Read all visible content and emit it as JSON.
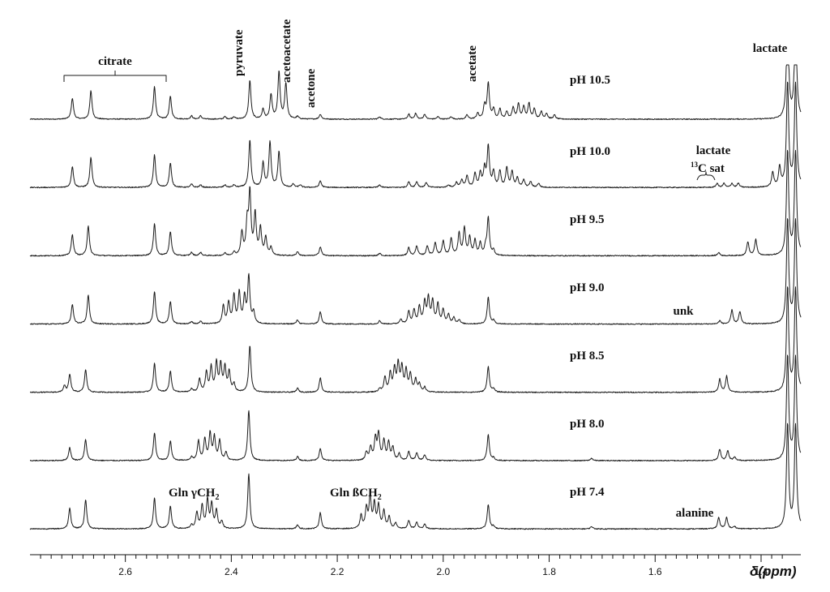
{
  "chart_data": {
    "type": "line",
    "title": "",
    "xlabel": "δ(ppm)",
    "ylabel": "",
    "xlim": [
      2.78,
      1.325
    ],
    "x_reversed": true,
    "grid": false,
    "ticks": [
      2.6,
      2.4,
      2.2,
      2.0,
      1.8,
      1.6,
      1.4
    ],
    "tick_labels": [
      "2.6",
      "2.4",
      "2.2",
      "2.0",
      "1.8",
      "1.6",
      "1.4"
    ],
    "series": [
      {
        "name": "pH 10.5",
        "baseline_rank": 0,
        "peaks": [
          [
            2.7,
            26
          ],
          [
            2.665,
            35
          ],
          [
            2.545,
            40
          ],
          [
            2.515,
            28
          ],
          [
            2.475,
            4
          ],
          [
            2.458,
            4
          ],
          [
            2.412,
            3
          ],
          [
            2.395,
            3
          ],
          [
            2.365,
            48
          ],
          [
            2.34,
            12
          ],
          [
            2.325,
            30
          ],
          [
            2.31,
            58
          ],
          [
            2.297,
            44
          ],
          [
            2.275,
            3
          ],
          [
            2.232,
            6
          ],
          [
            2.12,
            3
          ],
          [
            2.065,
            6
          ],
          [
            2.052,
            7
          ],
          [
            2.035,
            6
          ],
          [
            2.01,
            3
          ],
          [
            1.985,
            3
          ],
          [
            1.955,
            5
          ],
          [
            1.935,
            7
          ],
          [
            1.922,
            16
          ],
          [
            1.915,
            44
          ],
          [
            1.905,
            12
          ],
          [
            1.893,
            12
          ],
          [
            1.88,
            9
          ],
          [
            1.868,
            14
          ],
          [
            1.858,
            18
          ],
          [
            1.848,
            15
          ],
          [
            1.838,
            19
          ],
          [
            1.828,
            12
          ],
          [
            1.815,
            9
          ],
          [
            1.805,
            7
          ],
          [
            1.79,
            5
          ],
          [
            1.35,
            130
          ],
          [
            1.335,
            130
          ],
          [
            1.315,
            12
          ],
          [
            1.3,
            12
          ]
        ]
      },
      {
        "name": "pH 10.0",
        "baseline_rank": 1,
        "peaks": [
          [
            2.7,
            26
          ],
          [
            2.665,
            37
          ],
          [
            2.545,
            40
          ],
          [
            2.515,
            30
          ],
          [
            2.475,
            4
          ],
          [
            2.458,
            3
          ],
          [
            2.412,
            3
          ],
          [
            2.395,
            3
          ],
          [
            2.365,
            58
          ],
          [
            2.34,
            30
          ],
          [
            2.327,
            56
          ],
          [
            2.31,
            44
          ],
          [
            2.283,
            4
          ],
          [
            2.27,
            3
          ],
          [
            2.232,
            8
          ],
          [
            2.12,
            3
          ],
          [
            2.065,
            7
          ],
          [
            2.05,
            7
          ],
          [
            2.032,
            6
          ],
          [
            1.99,
            3
          ],
          [
            1.975,
            6
          ],
          [
            1.965,
            9
          ],
          [
            1.955,
            14
          ],
          [
            1.94,
            17
          ],
          [
            1.93,
            17
          ],
          [
            1.922,
            22
          ],
          [
            1.915,
            50
          ],
          [
            1.905,
            19
          ],
          [
            1.893,
            20
          ],
          [
            1.88,
            24
          ],
          [
            1.87,
            19
          ],
          [
            1.86,
            12
          ],
          [
            1.848,
            9
          ],
          [
            1.835,
            7
          ],
          [
            1.82,
            5
          ],
          [
            1.483,
            5
          ],
          [
            1.47,
            5
          ],
          [
            1.455,
            5
          ],
          [
            1.443,
            5
          ],
          [
            1.378,
            18
          ],
          [
            1.365,
            24
          ],
          [
            1.35,
            130
          ],
          [
            1.335,
            130
          ],
          [
            1.318,
            16
          ]
        ]
      },
      {
        "name": "pH 9.5",
        "baseline_rank": 2,
        "peaks": [
          [
            2.7,
            26
          ],
          [
            2.67,
            37
          ],
          [
            2.545,
            40
          ],
          [
            2.515,
            30
          ],
          [
            2.475,
            4
          ],
          [
            2.458,
            4
          ],
          [
            2.412,
            3
          ],
          [
            2.395,
            4
          ],
          [
            2.38,
            28
          ],
          [
            2.37,
            38
          ],
          [
            2.365,
            75
          ],
          [
            2.355,
            50
          ],
          [
            2.345,
            33
          ],
          [
            2.335,
            22
          ],
          [
            2.325,
            10
          ],
          [
            2.275,
            5
          ],
          [
            2.232,
            11
          ],
          [
            2.12,
            3
          ],
          [
            2.065,
            10
          ],
          [
            2.05,
            12
          ],
          [
            2.03,
            12
          ],
          [
            2.015,
            16
          ],
          [
            2.0,
            18
          ],
          [
            1.985,
            21
          ],
          [
            1.97,
            27
          ],
          [
            1.96,
            33
          ],
          [
            1.95,
            22
          ],
          [
            1.94,
            18
          ],
          [
            1.93,
            15
          ],
          [
            1.92,
            9
          ],
          [
            1.915,
            46
          ],
          [
            1.905,
            6
          ],
          [
            1.48,
            4
          ],
          [
            1.425,
            17
          ],
          [
            1.41,
            20
          ],
          [
            1.35,
            130
          ],
          [
            1.335,
            130
          ],
          [
            1.32,
            10
          ]
        ]
      },
      {
        "name": "pH 9.0",
        "baseline_rank": 3,
        "peaks": [
          [
            2.7,
            24
          ],
          [
            2.67,
            36
          ],
          [
            2.545,
            40
          ],
          [
            2.515,
            28
          ],
          [
            2.475,
            3
          ],
          [
            2.458,
            3
          ],
          [
            2.415,
            22
          ],
          [
            2.405,
            26
          ],
          [
            2.395,
            34
          ],
          [
            2.385,
            38
          ],
          [
            2.375,
            32
          ],
          [
            2.367,
            58
          ],
          [
            2.358,
            14
          ],
          [
            2.275,
            5
          ],
          [
            2.232,
            15
          ],
          [
            2.12,
            4
          ],
          [
            2.08,
            6
          ],
          [
            2.065,
            15
          ],
          [
            2.055,
            17
          ],
          [
            2.045,
            21
          ],
          [
            2.035,
            26
          ],
          [
            2.028,
            31
          ],
          [
            2.02,
            28
          ],
          [
            2.01,
            24
          ],
          [
            2.0,
            17
          ],
          [
            1.99,
            11
          ],
          [
            1.98,
            8
          ],
          [
            1.97,
            5
          ],
          [
            1.915,
            33
          ],
          [
            1.905,
            4
          ],
          [
            1.478,
            4
          ],
          [
            1.455,
            17
          ],
          [
            1.44,
            15
          ],
          [
            1.35,
            130
          ],
          [
            1.335,
            130
          ],
          [
            1.3,
            14
          ]
        ]
      },
      {
        "name": "pH 8.5",
        "baseline_rank": 4,
        "peaks": [
          [
            2.715,
            8
          ],
          [
            2.705,
            22
          ],
          [
            2.675,
            28
          ],
          [
            2.545,
            36
          ],
          [
            2.515,
            26
          ],
          [
            2.475,
            4
          ],
          [
            2.46,
            16
          ],
          [
            2.447,
            24
          ],
          [
            2.438,
            30
          ],
          [
            2.428,
            35
          ],
          [
            2.42,
            33
          ],
          [
            2.412,
            30
          ],
          [
            2.404,
            24
          ],
          [
            2.395,
            10
          ],
          [
            2.365,
            58
          ],
          [
            2.275,
            5
          ],
          [
            2.232,
            18
          ],
          [
            2.12,
            4
          ],
          [
            2.11,
            18
          ],
          [
            2.1,
            23
          ],
          [
            2.092,
            28
          ],
          [
            2.085,
            33
          ],
          [
            2.078,
            30
          ],
          [
            2.07,
            26
          ],
          [
            2.062,
            22
          ],
          [
            2.052,
            15
          ],
          [
            2.045,
            10
          ],
          [
            2.035,
            6
          ],
          [
            1.915,
            32
          ],
          [
            1.905,
            4
          ],
          [
            1.478,
            16
          ],
          [
            1.465,
            20
          ],
          [
            1.35,
            130
          ],
          [
            1.335,
            130
          ],
          [
            1.318,
            12
          ]
        ]
      },
      {
        "name": "pH 8.0",
        "baseline_rank": 5,
        "peaks": [
          [
            2.705,
            16
          ],
          [
            2.675,
            26
          ],
          [
            2.545,
            34
          ],
          [
            2.515,
            24
          ],
          [
            2.475,
            4
          ],
          [
            2.462,
            24
          ],
          [
            2.45,
            26
          ],
          [
            2.44,
            33
          ],
          [
            2.432,
            28
          ],
          [
            2.422,
            24
          ],
          [
            2.41,
            10
          ],
          [
            2.367,
            62
          ],
          [
            2.275,
            5
          ],
          [
            2.232,
            15
          ],
          [
            2.145,
            10
          ],
          [
            2.137,
            16
          ],
          [
            2.128,
            26
          ],
          [
            2.122,
            32
          ],
          [
            2.112,
            24
          ],
          [
            2.103,
            22
          ],
          [
            2.095,
            16
          ],
          [
            2.083,
            8
          ],
          [
            2.065,
            11
          ],
          [
            2.05,
            9
          ],
          [
            2.035,
            7
          ],
          [
            1.915,
            32
          ],
          [
            1.905,
            3
          ],
          [
            1.72,
            3
          ],
          [
            1.478,
            14
          ],
          [
            1.463,
            12
          ],
          [
            1.45,
            4
          ],
          [
            1.35,
            130
          ],
          [
            1.335,
            130
          ],
          [
            1.318,
            10
          ]
        ]
      },
      {
        "name": "pH 7.4",
        "baseline_rank": 6,
        "peaks": [
          [
            2.705,
            26
          ],
          [
            2.675,
            36
          ],
          [
            2.545,
            38
          ],
          [
            2.515,
            28
          ],
          [
            2.475,
            4
          ],
          [
            2.465,
            20
          ],
          [
            2.455,
            28
          ],
          [
            2.445,
            35
          ],
          [
            2.437,
            30
          ],
          [
            2.428,
            22
          ],
          [
            2.418,
            9
          ],
          [
            2.367,
            68
          ],
          [
            2.275,
            5
          ],
          [
            2.232,
            20
          ],
          [
            2.155,
            16
          ],
          [
            2.145,
            24
          ],
          [
            2.138,
            38
          ],
          [
            2.13,
            30
          ],
          [
            2.122,
            28
          ],
          [
            2.112,
            22
          ],
          [
            2.102,
            14
          ],
          [
            2.09,
            7
          ],
          [
            2.065,
            10
          ],
          [
            2.05,
            8
          ],
          [
            2.035,
            6
          ],
          [
            1.915,
            30
          ],
          [
            1.905,
            3
          ],
          [
            1.72,
            3
          ],
          [
            1.48,
            14
          ],
          [
            1.465,
            14
          ],
          [
            1.45,
            3
          ],
          [
            1.35,
            130
          ],
          [
            1.335,
            130
          ],
          [
            1.32,
            10
          ]
        ]
      }
    ],
    "labels": {
      "ph": [
        "pH 10.5",
        "pH 10.0",
        "pH 9.5",
        "pH 9.0",
        "pH 8.5",
        "pH 8.0",
        "pH 7.4"
      ],
      "citrate": "citrate",
      "pyruvate": "pyruvate",
      "acetoacetate": "acetoacetate",
      "acetone": "acetone",
      "acetate": "acetate",
      "lactate_top": "lactate",
      "lactate_sat": "lactate",
      "sat_superscript": "13",
      "sat_text": "C sat",
      "unk": "unk",
      "alanine": "alanine",
      "gln_gamma": "Gln γCH",
      "gln_beta": "Gln ßCH",
      "subscript_2": "2"
    }
  }
}
